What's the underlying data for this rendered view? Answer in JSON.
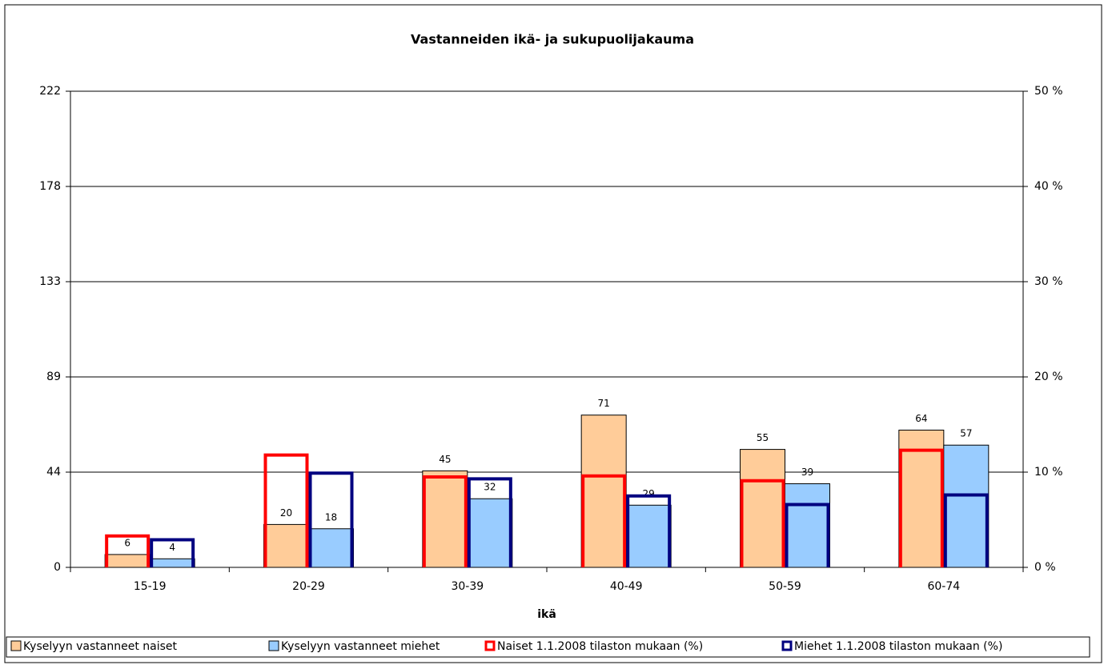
{
  "chart_data": {
    "type": "bar",
    "title": "Vastanneiden ikä- ja sukupuolijakauma",
    "xlabel": "ikä",
    "categories": [
      "15-19",
      "20-29",
      "30-39",
      "40-49",
      "50-59",
      "60-74"
    ],
    "series": [
      {
        "name": "Kyselyyn vastanneet naiset",
        "color": "#FFCC99",
        "values": [
          6,
          20,
          45,
          71,
          55,
          64
        ]
      },
      {
        "name": "Kyselyyn vastanneet miehet",
        "color": "#99CCFF",
        "values": [
          4,
          18,
          32,
          29,
          39,
          57
        ]
      },
      {
        "name": "Naiset 1.1.2008 tilaston mukaan (%)",
        "color": "#FF0000",
        "axis": "y2",
        "values": [
          3.3,
          11.8,
          9.5,
          9.6,
          9.1,
          12.3
        ]
      },
      {
        "name": "Miehet 1.1.2008 tilaston mukaan (%)",
        "color": "#000080",
        "axis": "y2",
        "values": [
          2.9,
          9.9,
          9.3,
          7.5,
          6.6,
          7.6
        ]
      }
    ],
    "ylim": [
      0,
      222
    ],
    "yticks": [
      0,
      {
        "value": 44.4,
        "label": "44"
      },
      {
        "value": 88.8,
        "label": "89"
      },
      {
        "value": 133.2,
        "label": "133"
      },
      {
        "value": 177.6,
        "label": "178"
      },
      222
    ],
    "y2lim": [
      0,
      50
    ],
    "y2ticks": [
      {
        "value": 0,
        "label": "0 %"
      },
      {
        "value": 10,
        "label": "10 %"
      },
      {
        "value": 20,
        "label": "20 %"
      },
      {
        "value": 30,
        "label": "30 %"
      },
      {
        "value": 40,
        "label": "40 %"
      },
      {
        "value": 50,
        "label": "50 %"
      }
    ],
    "grid": true
  }
}
